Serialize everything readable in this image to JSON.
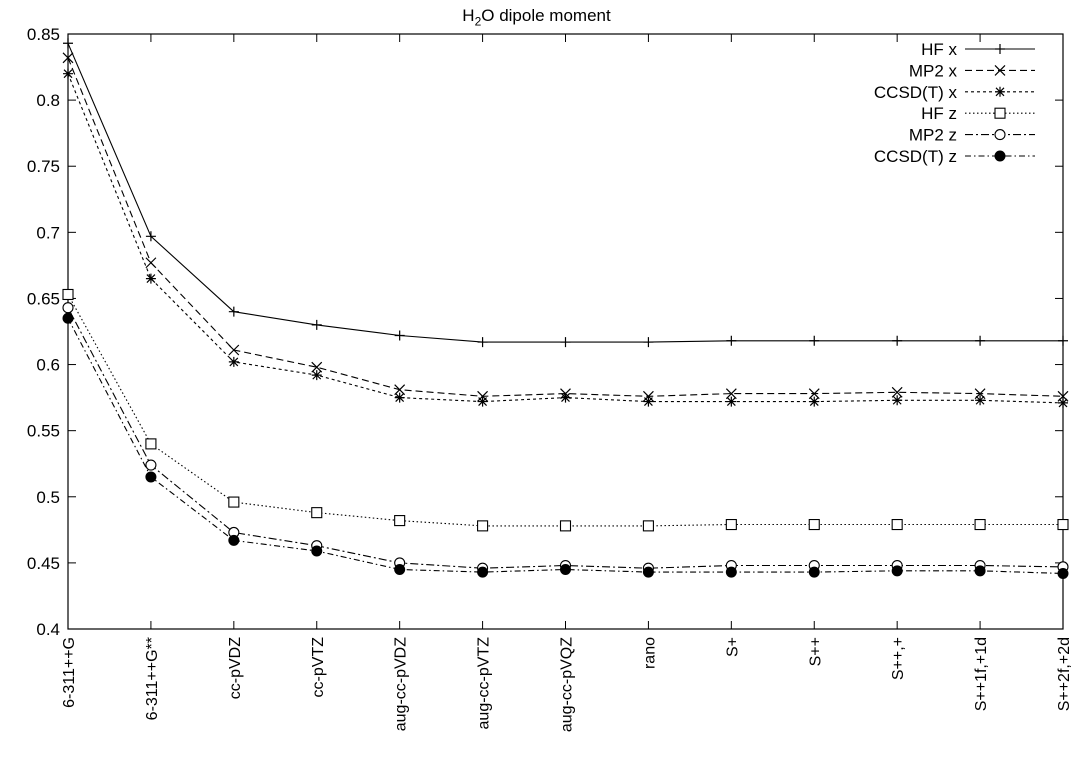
{
  "chart_data": {
    "type": "line",
    "title_main": "H",
    "title_sub": "2",
    "title_rest": "O dipole moment",
    "ylim": [
      0.4,
      0.85
    ],
    "yticks": [
      "0.4",
      "0.45",
      "0.5",
      "0.55",
      "0.6",
      "0.65",
      "0.7",
      "0.75",
      "0.8",
      "0.85"
    ],
    "categories": [
      "6-311++G",
      "6-311++G**",
      "cc-pVDZ",
      "cc-pVTZ",
      "aug-cc-pVDZ",
      "aug-cc-pVTZ",
      "aug-cc-pVQZ",
      "rano",
      "S+",
      "S++",
      "S++,+",
      "S++1f,+1d",
      "S++2f,+2d"
    ],
    "legend_position": "top-right",
    "grid": false,
    "series": [
      {
        "name": "HF x",
        "marker": "plus",
        "dash": "",
        "values": [
          0.843,
          0.697,
          0.64,
          0.63,
          0.622,
          0.617,
          0.617,
          0.617,
          0.618,
          0.618,
          0.618,
          0.618,
          0.618
        ]
      },
      {
        "name": "MP2 x",
        "marker": "cross",
        "dash": "7,4",
        "values": [
          0.832,
          0.677,
          0.611,
          0.598,
          0.581,
          0.576,
          0.578,
          0.576,
          0.578,
          0.578,
          0.579,
          0.578,
          0.576
        ]
      },
      {
        "name": "CCSD(T) x",
        "marker": "star",
        "dash": "3,3",
        "values": [
          0.82,
          0.665,
          0.602,
          0.592,
          0.575,
          0.572,
          0.575,
          0.572,
          0.572,
          0.572,
          0.573,
          0.573,
          0.571
        ]
      },
      {
        "name": "HF z",
        "marker": "square",
        "dash": "1.5,2.5",
        "values": [
          0.653,
          0.54,
          0.496,
          0.488,
          0.482,
          0.478,
          0.478,
          0.478,
          0.479,
          0.479,
          0.479,
          0.479,
          0.479
        ]
      },
      {
        "name": "MP2 z",
        "marker": "circle",
        "dash": "8,3,2,3",
        "values": [
          0.643,
          0.524,
          0.473,
          0.463,
          0.45,
          0.446,
          0.448,
          0.446,
          0.448,
          0.448,
          0.448,
          0.448,
          0.447
        ]
      },
      {
        "name": "CCSD(T) z",
        "marker": "dot",
        "dash": "6,3,1.5,3",
        "values": [
          0.635,
          0.515,
          0.467,
          0.459,
          0.445,
          0.443,
          0.445,
          0.443,
          0.443,
          0.443,
          0.444,
          0.444,
          0.442
        ]
      }
    ]
  }
}
